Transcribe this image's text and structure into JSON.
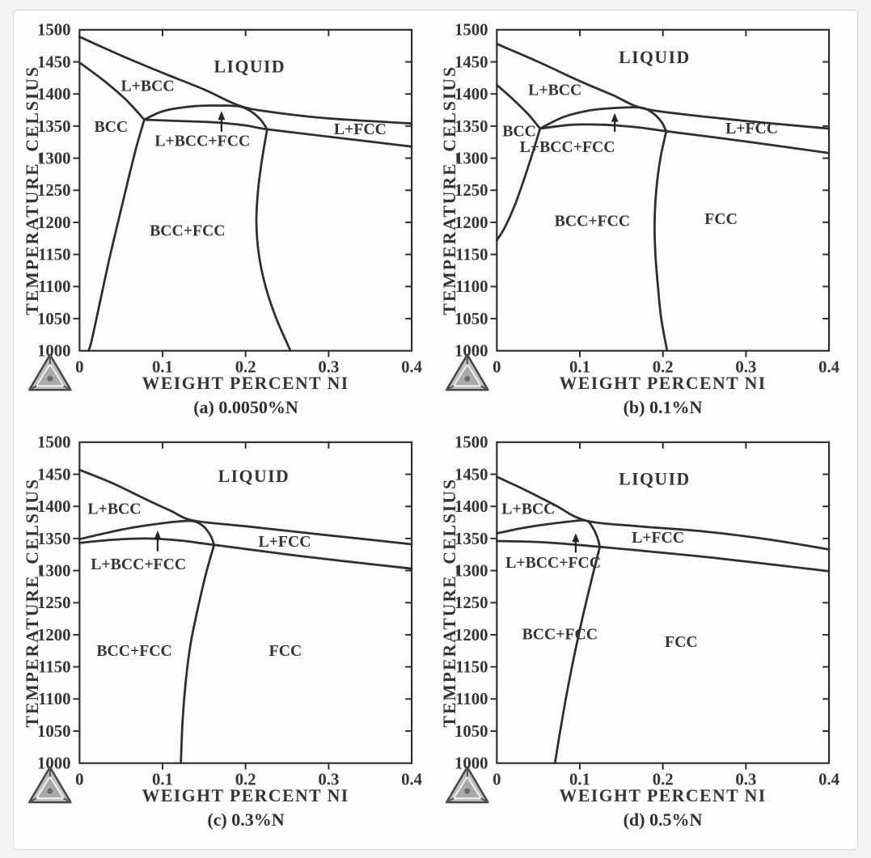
{
  "axes": {
    "y_label": "TEMPERATURE_CELSIUS",
    "x_label": "WEIGHT PERCENT NI"
  },
  "icons": {
    "corner_logo": "thermocalc-triangle-logo"
  },
  "chart_data": [
    {
      "type": "line",
      "title": "(a) 0.0050%N",
      "xlabel": "WEIGHT PERCENT NI",
      "ylabel": "TEMPERATURE_CELSIUS",
      "xlim": [
        0,
        0.4
      ],
      "ylim": [
        1000,
        1500
      ],
      "x_ticks": [
        0,
        0.1,
        0.2,
        0.3,
        0.4
      ],
      "y_ticks": [
        1000,
        1050,
        1100,
        1150,
        1200,
        1250,
        1300,
        1350,
        1400,
        1450,
        1500
      ],
      "grid": false,
      "series": [
        {
          "name": "liquidus",
          "points": [
            [
              0,
              1489
            ],
            [
              0.05,
              1460
            ],
            [
              0.1,
              1433
            ],
            [
              0.15,
              1407
            ],
            [
              0.192,
              1382
            ],
            [
              0.23,
              1372
            ],
            [
              0.3,
              1362
            ],
            [
              0.4,
              1354
            ]
          ]
        },
        {
          "name": "bcc-solidus",
          "points": [
            [
              0,
              1449
            ],
            [
              0.03,
              1420
            ],
            [
              0.056,
              1391
            ],
            [
              0.078,
              1360
            ]
          ]
        },
        {
          "name": "three-phase-dome",
          "points": [
            [
              0.078,
              1360
            ],
            [
              0.1,
              1373
            ],
            [
              0.13,
              1380
            ],
            [
              0.16,
              1382
            ],
            [
              0.19,
              1381
            ],
            [
              0.205,
              1374
            ],
            [
              0.218,
              1360
            ],
            [
              0.226,
              1345
            ]
          ]
        },
        {
          "name": "solvus-flat",
          "points": [
            [
              0.078,
              1360
            ],
            [
              0.12,
              1358
            ],
            [
              0.16,
              1356
            ],
            [
              0.2,
              1351
            ],
            [
              0.226,
              1345
            ],
            [
              0.31,
              1332
            ],
            [
              0.4,
              1318
            ]
          ]
        },
        {
          "name": "bcc-left-boundary",
          "points": [
            [
              0.078,
              1360
            ],
            [
              0.068,
              1315
            ],
            [
              0.057,
              1258
            ],
            [
              0.046,
              1198
            ],
            [
              0.035,
              1138
            ],
            [
              0.025,
              1078
            ],
            [
              0.015,
              1018
            ],
            [
              0.011,
              1000
            ]
          ]
        },
        {
          "name": "fcc-left-boundary",
          "points": [
            [
              0.226,
              1345
            ],
            [
              0.22,
              1300
            ],
            [
              0.215,
              1250
            ],
            [
              0.213,
              1200
            ],
            [
              0.216,
              1150
            ],
            [
              0.224,
              1100
            ],
            [
              0.237,
              1050
            ],
            [
              0.254,
              1000
            ]
          ]
        }
      ],
      "region_labels": [
        {
          "text": "LIQUID",
          "x": 0.205,
          "y": 1442
        },
        {
          "text": "L+BCC",
          "x": 0.082,
          "y": 1413
        },
        {
          "text": "BCC",
          "x": 0.038,
          "y": 1350
        },
        {
          "text": "L+FCC",
          "x": 0.338,
          "y": 1346
        },
        {
          "text": "L+BCC+FCC",
          "x": 0.148,
          "y": 1328
        },
        {
          "text": "BCC+FCC",
          "x": 0.13,
          "y": 1188
        }
      ],
      "arrow": {
        "x": 0.171,
        "y_from": 1341,
        "y_to": 1372
      }
    },
    {
      "type": "line",
      "title": "(b) 0.1%N",
      "xlabel": "WEIGHT PERCENT NI",
      "ylabel": "TEMPERATURE_CELSIUS",
      "xlim": [
        0,
        0.4
      ],
      "ylim": [
        1000,
        1500
      ],
      "x_ticks": [
        0,
        0.1,
        0.2,
        0.3,
        0.4
      ],
      "y_ticks": [
        1000,
        1050,
        1100,
        1150,
        1200,
        1250,
        1300,
        1350,
        1400,
        1450,
        1500
      ],
      "grid": false,
      "series": [
        {
          "name": "liquidus",
          "points": [
            [
              0,
              1478
            ],
            [
              0.05,
              1450
            ],
            [
              0.1,
              1420
            ],
            [
              0.14,
              1398
            ],
            [
              0.172,
              1379
            ],
            [
              0.22,
              1369
            ],
            [
              0.3,
              1358
            ],
            [
              0.4,
              1346
            ]
          ]
        },
        {
          "name": "bcc-solidus",
          "points": [
            [
              0,
              1414
            ],
            [
              0.02,
              1391
            ],
            [
              0.038,
              1368
            ],
            [
              0.052,
              1346
            ]
          ]
        },
        {
          "name": "bcc-left-boundary",
          "points": [
            [
              0.052,
              1346
            ],
            [
              0.044,
              1312
            ],
            [
              0.034,
              1272
            ],
            [
              0.022,
              1228
            ],
            [
              0.01,
              1193
            ],
            [
              0,
              1172
            ]
          ]
        },
        {
          "name": "three-phase-dome",
          "points": [
            [
              0.052,
              1346
            ],
            [
              0.08,
              1364
            ],
            [
              0.11,
              1374
            ],
            [
              0.14,
              1378
            ],
            [
              0.172,
              1379
            ],
            [
              0.187,
              1371
            ],
            [
              0.198,
              1357
            ],
            [
              0.204,
              1342
            ]
          ]
        },
        {
          "name": "solvus-flat",
          "points": [
            [
              0.052,
              1346
            ],
            [
              0.09,
              1352
            ],
            [
              0.13,
              1352
            ],
            [
              0.17,
              1348
            ],
            [
              0.204,
              1342
            ],
            [
              0.3,
              1326
            ],
            [
              0.4,
              1308
            ]
          ]
        },
        {
          "name": "fcc-left-boundary",
          "points": [
            [
              0.204,
              1342
            ],
            [
              0.197,
              1300
            ],
            [
              0.192,
              1250
            ],
            [
              0.19,
              1200
            ],
            [
              0.191,
              1150
            ],
            [
              0.194,
              1100
            ],
            [
              0.198,
              1050
            ],
            [
              0.205,
              1000
            ]
          ]
        }
      ],
      "region_labels": [
        {
          "text": "LIQUID",
          "x": 0.19,
          "y": 1457
        },
        {
          "text": "L+BCC",
          "x": 0.07,
          "y": 1407
        },
        {
          "text": "BCC",
          "x": 0.027,
          "y": 1343
        },
        {
          "text": "L+FCC",
          "x": 0.307,
          "y": 1347
        },
        {
          "text": "L+BCC+FCC",
          "x": 0.085,
          "y": 1318
        },
        {
          "text": "BCC+FCC",
          "x": 0.115,
          "y": 1203
        },
        {
          "text": "FCC",
          "x": 0.27,
          "y": 1206
        }
      ],
      "arrow": {
        "x": 0.142,
        "y_from": 1341,
        "y_to": 1369
      }
    },
    {
      "type": "line",
      "title": "(c) 0.3%N",
      "xlabel": "WEIGHT PERCENT NI",
      "ylabel": "TEMPERATURE_CELSIUS",
      "xlim": [
        0,
        0.4
      ],
      "ylim": [
        1000,
        1500
      ],
      "x_ticks": [
        0,
        0.1,
        0.2,
        0.3,
        0.4
      ],
      "y_ticks": [
        1000,
        1050,
        1100,
        1150,
        1200,
        1250,
        1300,
        1350,
        1400,
        1450,
        1500
      ],
      "grid": false,
      "series": [
        {
          "name": "liquidus",
          "points": [
            [
              0,
              1457
            ],
            [
              0.04,
              1436
            ],
            [
              0.08,
              1411
            ],
            [
              0.11,
              1393
            ],
            [
              0.137,
              1378
            ],
            [
              0.2,
              1369
            ],
            [
              0.3,
              1355
            ],
            [
              0.4,
              1341
            ]
          ]
        },
        {
          "name": "three-phase-dome",
          "points": [
            [
              0,
              1349
            ],
            [
              0.03,
              1358
            ],
            [
              0.06,
              1366
            ],
            [
              0.09,
              1372
            ],
            [
              0.115,
              1376
            ],
            [
              0.137,
              1377
            ],
            [
              0.15,
              1368
            ],
            [
              0.158,
              1354
            ],
            [
              0.162,
              1340
            ]
          ]
        },
        {
          "name": "solvus-flat",
          "points": [
            [
              0,
              1343
            ],
            [
              0.04,
              1348
            ],
            [
              0.08,
              1350
            ],
            [
              0.12,
              1347
            ],
            [
              0.162,
              1340
            ],
            [
              0.27,
              1322
            ],
            [
              0.4,
              1303
            ]
          ]
        },
        {
          "name": "fcc-left-boundary",
          "points": [
            [
              0.162,
              1340
            ],
            [
              0.152,
              1294
            ],
            [
              0.143,
              1244
            ],
            [
              0.134,
              1188
            ],
            [
              0.128,
              1128
            ],
            [
              0.124,
              1064
            ],
            [
              0.122,
              1000
            ]
          ]
        }
      ],
      "region_labels": [
        {
          "text": "LIQUID",
          "x": 0.21,
          "y": 1447
        },
        {
          "text": "L+BCC",
          "x": 0.042,
          "y": 1397
        },
        {
          "text": "L+FCC",
          "x": 0.247,
          "y": 1346
        },
        {
          "text": "L+BCC+FCC",
          "x": 0.071,
          "y": 1311
        },
        {
          "text": "BCC+FCC",
          "x": 0.066,
          "y": 1176
        },
        {
          "text": "FCC",
          "x": 0.248,
          "y": 1176
        }
      ],
      "arrow": {
        "x": 0.094,
        "y_from": 1330,
        "y_to": 1361
      }
    },
    {
      "type": "line",
      "title": "(d) 0.5%N",
      "xlabel": "WEIGHT PERCENT NI",
      "ylabel": "TEMPERATURE_CELSIUS",
      "xlim": [
        0,
        0.4
      ],
      "ylim": [
        1000,
        1500
      ],
      "x_ticks": [
        0,
        0.1,
        0.2,
        0.3,
        0.4
      ],
      "y_ticks": [
        1000,
        1050,
        1100,
        1150,
        1200,
        1250,
        1300,
        1350,
        1400,
        1450,
        1500
      ],
      "grid": false,
      "series": [
        {
          "name": "liquidus",
          "points": [
            [
              0,
              1446
            ],
            [
              0.035,
              1425
            ],
            [
              0.07,
              1402
            ],
            [
              0.107,
              1378
            ],
            [
              0.17,
              1369
            ],
            [
              0.25,
              1361
            ],
            [
              0.33,
              1348
            ],
            [
              0.4,
              1333
            ]
          ]
        },
        {
          "name": "three-phase-dome",
          "points": [
            [
              0,
              1358
            ],
            [
              0.03,
              1366
            ],
            [
              0.06,
              1372
            ],
            [
              0.085,
              1376
            ],
            [
              0.107,
              1378
            ],
            [
              0.115,
              1368
            ],
            [
              0.121,
              1352
            ],
            [
              0.124,
              1337
            ]
          ]
        },
        {
          "name": "solvus-flat",
          "points": [
            [
              0,
              1346
            ],
            [
              0.04,
              1345
            ],
            [
              0.08,
              1342
            ],
            [
              0.124,
              1337
            ],
            [
              0.26,
              1320
            ],
            [
              0.4,
              1299
            ]
          ]
        },
        {
          "name": "fcc-left-boundary",
          "points": [
            [
              0.124,
              1337
            ],
            [
              0.113,
              1280
            ],
            [
              0.102,
              1220
            ],
            [
              0.092,
              1160
            ],
            [
              0.083,
              1100
            ],
            [
              0.075,
              1040
            ],
            [
              0.07,
              1000
            ]
          ]
        }
      ],
      "region_labels": [
        {
          "text": "LIQUID",
          "x": 0.19,
          "y": 1442
        },
        {
          "text": "L+BCC",
          "x": 0.038,
          "y": 1397
        },
        {
          "text": "L+FCC",
          "x": 0.194,
          "y": 1352
        },
        {
          "text": "L+BCC+FCC",
          "x": 0.068,
          "y": 1313
        },
        {
          "text": "BCC+FCC",
          "x": 0.076,
          "y": 1202
        },
        {
          "text": "FCC",
          "x": 0.222,
          "y": 1190
        }
      ],
      "arrow": {
        "x": 0.095,
        "y_from": 1328,
        "y_to": 1357
      }
    }
  ]
}
